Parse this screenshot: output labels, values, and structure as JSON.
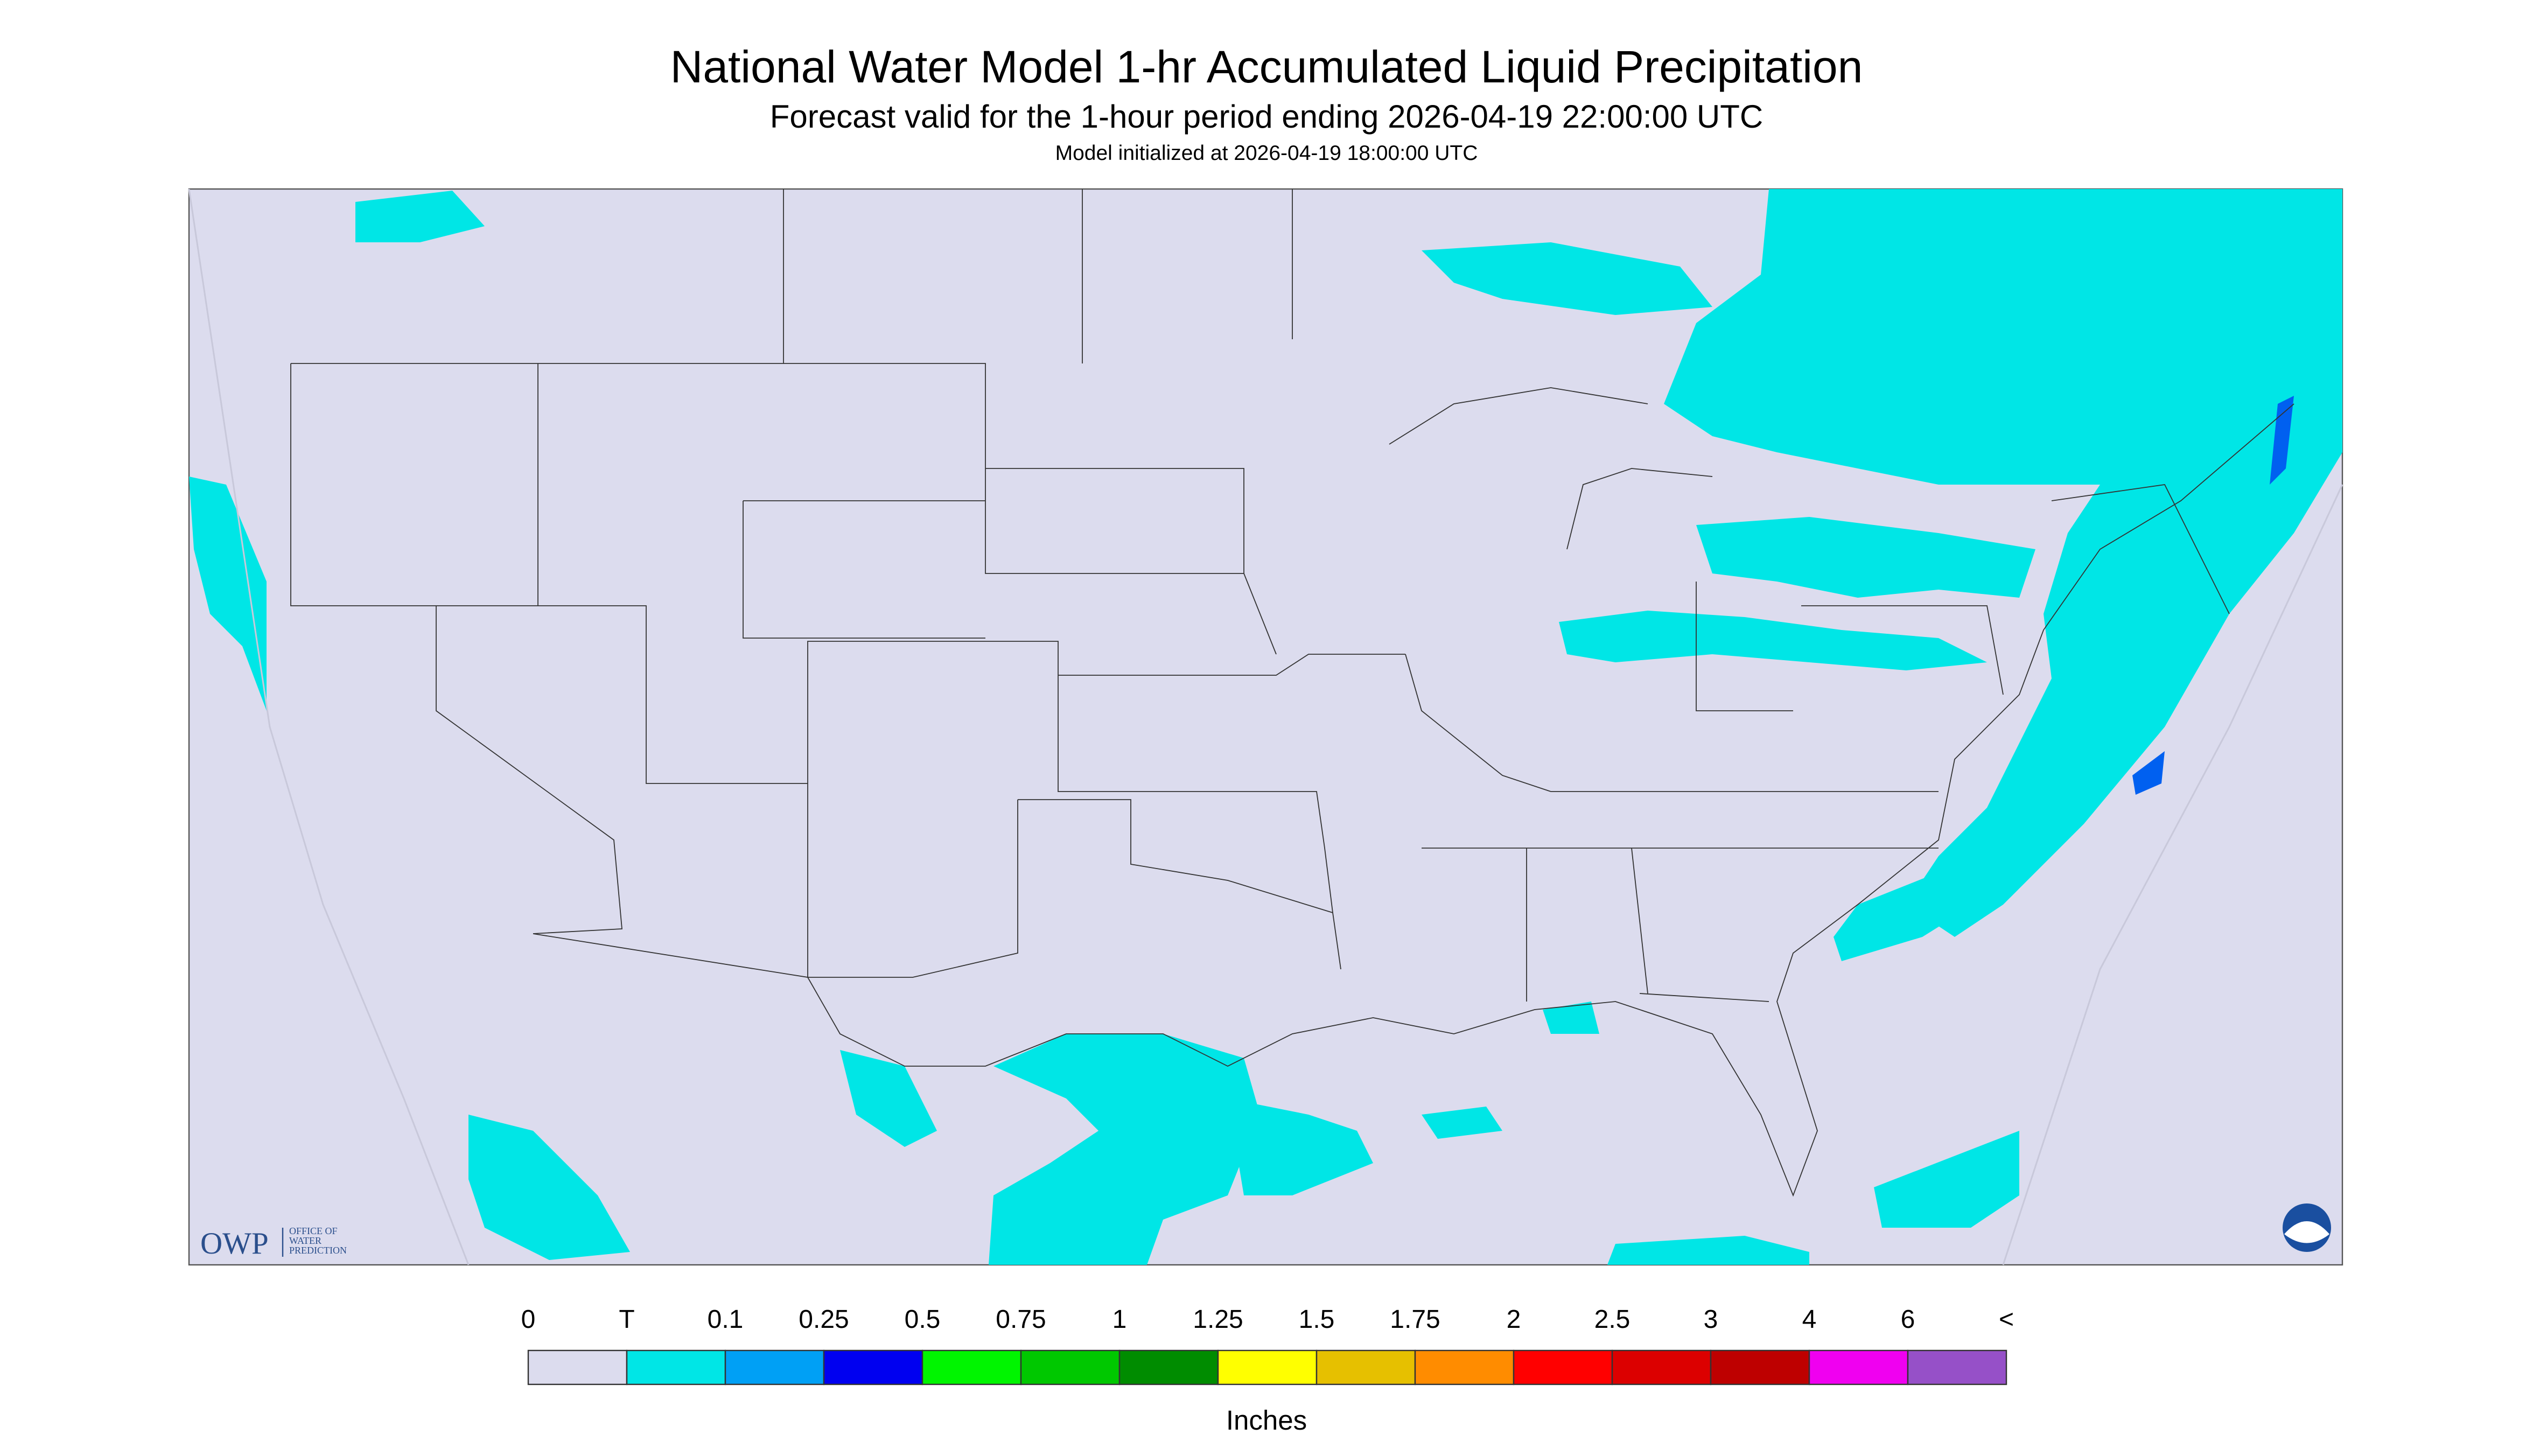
{
  "header": {
    "title": "National Water Model 1-hr Accumulated Liquid Precipitation",
    "subtitle": "Forecast valid for the 1-hour period ending 2026-04-19 22:00:00 UTC",
    "note": "Model initialized at 2026-04-19 18:00:00 UTC"
  },
  "logo": {
    "abbr": "OWP",
    "lines": [
      "OFFICE OF",
      "WATER",
      "PREDICTION"
    ]
  },
  "legend": {
    "labels": [
      "0",
      "T",
      "0.1",
      "0.25",
      "0.5",
      "0.75",
      "1",
      "1.25",
      "1.5",
      "1.75",
      "2",
      "2.5",
      "3",
      "4",
      "6",
      "<"
    ],
    "colors": [
      "#dcdcee",
      "#00e6e6",
      "#00a0f5",
      "#0000f0",
      "#00f500",
      "#00c800",
      "#008c00",
      "#ffff00",
      "#e6c000",
      "#ff8c00",
      "#ff0000",
      "#dc0000",
      "#be0000",
      "#f000f0",
      "#9650c8"
    ],
    "unit": "Inches"
  }
}
